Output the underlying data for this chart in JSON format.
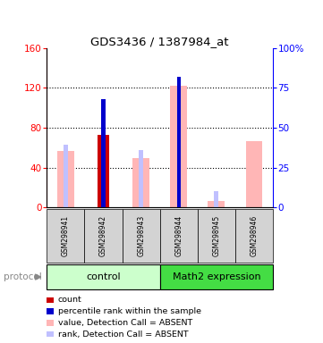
{
  "title": "GDS3436 / 1387984_at",
  "samples": [
    "GSM298941",
    "GSM298942",
    "GSM298943",
    "GSM298944",
    "GSM298945",
    "GSM298946"
  ],
  "value_absent": [
    57,
    0,
    50,
    122,
    7,
    67
  ],
  "rank_absent_left": [
    63,
    0,
    58,
    0,
    16,
    0
  ],
  "count_value": [
    0,
    73,
    0,
    0,
    0,
    0
  ],
  "percentile_left": [
    0,
    68,
    0,
    82,
    0,
    0
  ],
  "ylim_left": [
    0,
    160
  ],
  "ylim_right": [
    0,
    100
  ],
  "yticks_left": [
    0,
    40,
    80,
    120,
    160
  ],
  "yticks_right": [
    0,
    25,
    50,
    75,
    100
  ],
  "yticklabels_right": [
    "0",
    "25",
    "50",
    "75",
    "100%"
  ],
  "color_value_absent": "#ffb6b6",
  "color_rank_absent": "#c0c0ff",
  "color_count": "#cc0000",
  "color_percentile": "#0000cc",
  "ctrl_color": "#ccffcc",
  "math_color": "#44dd44",
  "legend_items": [
    {
      "color": "#cc0000",
      "label": "count"
    },
    {
      "color": "#0000cc",
      "label": "percentile rank within the sample"
    },
    {
      "color": "#ffb6b6",
      "label": "value, Detection Call = ABSENT"
    },
    {
      "color": "#c0c0ff",
      "label": "rank, Detection Call = ABSENT"
    }
  ]
}
